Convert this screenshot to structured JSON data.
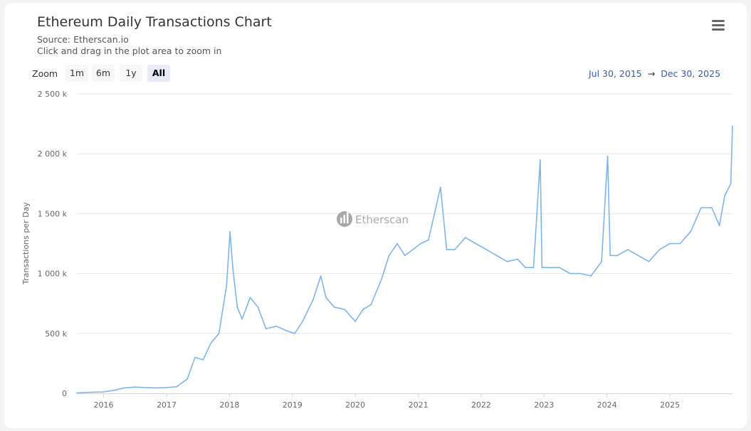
{
  "header": {
    "title": "Ethereum Daily Transactions Chart",
    "source": "Source: Etherscan.io",
    "hint": "Click and drag in the plot area to zoom in"
  },
  "zoom": {
    "label": "Zoom",
    "buttons": [
      "1m",
      "6m",
      "1y",
      "All"
    ],
    "active": "All"
  },
  "range": {
    "from": "Jul 30, 2015",
    "arrow": "→",
    "to": "Dec 30, 2025"
  },
  "watermark": "Etherscan",
  "icons": {
    "menu": "hamburger-menu-icon",
    "watermark_logo": "etherscan-logo-icon"
  },
  "colors": {
    "series": "#7cb5ec",
    "range_text": "#335cad"
  },
  "chart_data": {
    "type": "line",
    "title": "Ethereum Daily Transactions Chart",
    "ylabel": "Transactions per Day",
    "xlabel": "",
    "ylim": [
      0,
      2500000
    ],
    "xlim": [
      "2015-07-30",
      "2025-12-30"
    ],
    "y_tick_labels": [
      "0",
      "500 k",
      "1 000 k",
      "1 500 k",
      "2 000 k",
      "2 500 k"
    ],
    "y_ticks": [
      0,
      500000,
      1000000,
      1500000,
      2000000,
      2500000
    ],
    "x_tick_labels": [
      "2016",
      "2017",
      "2018",
      "2019",
      "2020",
      "2021",
      "2022",
      "2023",
      "2024",
      "2025"
    ],
    "x_ticks": [
      "2016-01-01",
      "2017-01-01",
      "2018-01-01",
      "2019-01-01",
      "2020-01-01",
      "2021-01-01",
      "2022-01-01",
      "2023-01-01",
      "2024-01-01",
      "2025-01-01"
    ],
    "grid": true,
    "series": [
      {
        "name": "",
        "points": [
          [
            "2015-07-30",
            3000
          ],
          [
            "2015-10-01",
            8000
          ],
          [
            "2016-01-01",
            12000
          ],
          [
            "2016-03-01",
            25000
          ],
          [
            "2016-05-01",
            45000
          ],
          [
            "2016-07-01",
            52000
          ],
          [
            "2016-09-01",
            48000
          ],
          [
            "2016-11-01",
            45000
          ],
          [
            "2017-01-01",
            48000
          ],
          [
            "2017-03-01",
            55000
          ],
          [
            "2017-05-01",
            120000
          ],
          [
            "2017-06-15",
            300000
          ],
          [
            "2017-08-01",
            280000
          ],
          [
            "2017-09-15",
            420000
          ],
          [
            "2017-11-01",
            500000
          ],
          [
            "2017-12-15",
            900000
          ],
          [
            "2018-01-04",
            1350000
          ],
          [
            "2018-01-20",
            1050000
          ],
          [
            "2018-02-15",
            720000
          ],
          [
            "2018-03-15",
            620000
          ],
          [
            "2018-05-01",
            800000
          ],
          [
            "2018-06-15",
            720000
          ],
          [
            "2018-08-01",
            540000
          ],
          [
            "2018-10-01",
            560000
          ],
          [
            "2018-12-01",
            520000
          ],
          [
            "2019-01-15",
            500000
          ],
          [
            "2019-03-01",
            600000
          ],
          [
            "2019-05-01",
            780000
          ],
          [
            "2019-06-15",
            980000
          ],
          [
            "2019-07-15",
            800000
          ],
          [
            "2019-09-01",
            720000
          ],
          [
            "2019-11-01",
            700000
          ],
          [
            "2020-01-01",
            600000
          ],
          [
            "2020-02-15",
            700000
          ],
          [
            "2020-04-01",
            740000
          ],
          [
            "2020-06-01",
            950000
          ],
          [
            "2020-07-15",
            1150000
          ],
          [
            "2020-09-01",
            1250000
          ],
          [
            "2020-10-15",
            1150000
          ],
          [
            "2020-12-01",
            1200000
          ],
          [
            "2021-01-15",
            1250000
          ],
          [
            "2021-03-01",
            1280000
          ],
          [
            "2021-05-10",
            1720000
          ],
          [
            "2021-06-15",
            1200000
          ],
          [
            "2021-08-01",
            1200000
          ],
          [
            "2021-10-01",
            1300000
          ],
          [
            "2021-12-01",
            1250000
          ],
          [
            "2022-02-01",
            1200000
          ],
          [
            "2022-04-01",
            1150000
          ],
          [
            "2022-06-01",
            1100000
          ],
          [
            "2022-08-01",
            1120000
          ],
          [
            "2022-09-15",
            1050000
          ],
          [
            "2022-11-01",
            1050000
          ],
          [
            "2022-12-10",
            1950000
          ],
          [
            "2022-12-20",
            1050000
          ],
          [
            "2023-02-01",
            1050000
          ],
          [
            "2023-04-01",
            1050000
          ],
          [
            "2023-06-01",
            1000000
          ],
          [
            "2023-08-01",
            1000000
          ],
          [
            "2023-10-01",
            980000
          ],
          [
            "2023-12-01",
            1100000
          ],
          [
            "2024-01-05",
            1980000
          ],
          [
            "2024-01-20",
            1150000
          ],
          [
            "2024-03-01",
            1150000
          ],
          [
            "2024-05-01",
            1200000
          ],
          [
            "2024-07-01",
            1150000
          ],
          [
            "2024-09-01",
            1100000
          ],
          [
            "2024-11-01",
            1200000
          ],
          [
            "2025-01-01",
            1250000
          ],
          [
            "2025-03-01",
            1250000
          ],
          [
            "2025-05-01",
            1350000
          ],
          [
            "2025-07-01",
            1550000
          ],
          [
            "2025-09-01",
            1550000
          ],
          [
            "2025-10-15",
            1400000
          ],
          [
            "2025-11-15",
            1650000
          ],
          [
            "2025-12-20",
            1750000
          ],
          [
            "2025-12-30",
            2230000
          ]
        ]
      }
    ]
  }
}
